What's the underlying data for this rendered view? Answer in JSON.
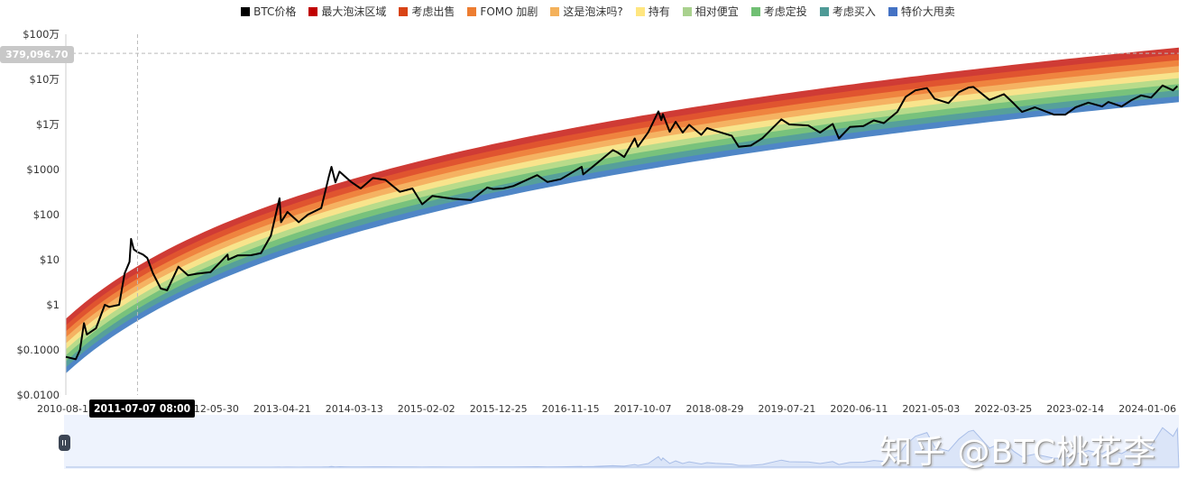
{
  "legend": [
    {
      "label": "BTC价格",
      "color": "#000000"
    },
    {
      "label": "最大泡沫区域",
      "color": "#c00000"
    },
    {
      "label": "考虑出售",
      "color": "#d84315"
    },
    {
      "label": "FOMO 加剧",
      "color": "#ed7d31"
    },
    {
      "label": "这是泡沫吗?",
      "color": "#f4b15b"
    },
    {
      "label": "持有",
      "color": "#ffe680"
    },
    {
      "label": "相对便宜",
      "color": "#a9d18e"
    },
    {
      "label": "考虑定投",
      "color": "#70bf73"
    },
    {
      "label": "考虑买入",
      "color": "#4e9a96"
    },
    {
      "label": "特价大甩卖",
      "color": "#4472c4"
    }
  ],
  "tooltip": {
    "x_label": "2011-07-07 08:00",
    "y_label": "379,096.70"
  },
  "watermark": "知乎 @BTC桃花李",
  "chart_data": {
    "type": "line",
    "y_scale": "log",
    "ylim": [
      0.01,
      1000000
    ],
    "y_ticks": [
      "$100万",
      "$10万",
      "$1万",
      "$1000",
      "$100",
      "$10",
      "$1",
      "$0.1000",
      "$0.0100"
    ],
    "x_ticks": [
      "2010-08-17",
      "2012-05-30",
      "2013-04-21",
      "2014-03-13",
      "2015-02-02",
      "2015-12-25",
      "2016-11-15",
      "2017-10-07",
      "2018-08-29",
      "2019-07-21",
      "2020-06-11",
      "2021-05-03",
      "2022-03-25",
      "2023-02-14",
      "2024-01-06"
    ],
    "xlim": [
      "2010-08-17",
      "2024-05-27"
    ],
    "grid": false,
    "legend_position": "top",
    "crosshair": {
      "date": "2011-07-07",
      "value": 379096.7
    },
    "rainbow": {
      "formula": "log10(price) = 2.67 * ln(days since 2009-01-03) - 18.56",
      "band_width_decades": 0.1333,
      "bands_bottom_to_top": [
        "特价大甩卖",
        "考虑买入",
        "考虑定投",
        "相对便宜",
        "持有",
        "这是泡沫吗?",
        "FOMO 加剧",
        "考虑出售",
        "最大泡沫区域"
      ],
      "band_colors_bottom_to_top": [
        "#4f86c6",
        "#56a09a",
        "#78c27c",
        "#b8db8a",
        "#f8e48c",
        "#f5b262",
        "#ef843f",
        "#e0542f",
        "#cf3b35"
      ]
    },
    "series": [
      {
        "name": "BTC价格",
        "color": "#000000",
        "points": [
          [
            "2010-08-17",
            0.07
          ],
          [
            "2010-10-01",
            0.062
          ],
          [
            "2010-10-20",
            0.1
          ],
          [
            "2010-11-07",
            0.39
          ],
          [
            "2010-11-20",
            0.22
          ],
          [
            "2010-12-31",
            0.3
          ],
          [
            "2011-02-09",
            1.0
          ],
          [
            "2011-03-01",
            0.9
          ],
          [
            "2011-04-15",
            1.0
          ],
          [
            "2011-05-10",
            5
          ],
          [
            "2011-06-01",
            9
          ],
          [
            "2011-06-08",
            29
          ],
          [
            "2011-06-20",
            17
          ],
          [
            "2011-07-07",
            14.8
          ],
          [
            "2011-08-01",
            13
          ],
          [
            "2011-08-20",
            11
          ],
          [
            "2011-09-15",
            5
          ],
          [
            "2011-10-20",
            2.3
          ],
          [
            "2011-11-18",
            2.1
          ],
          [
            "2012-01-08",
            7
          ],
          [
            "2012-02-20",
            4.5
          ],
          [
            "2012-04-01",
            4.9
          ],
          [
            "2012-06-01",
            5.3
          ],
          [
            "2012-08-17",
            13
          ],
          [
            "2012-08-20",
            10
          ],
          [
            "2012-10-01",
            12.4
          ],
          [
            "2012-12-01",
            12.6
          ],
          [
            "2013-01-15",
            14
          ],
          [
            "2013-03-01",
            34
          ],
          [
            "2013-04-09",
            230
          ],
          [
            "2013-04-16",
            68
          ],
          [
            "2013-05-15",
            115
          ],
          [
            "2013-07-05",
            68
          ],
          [
            "2013-08-15",
            100
          ],
          [
            "2013-10-15",
            140
          ],
          [
            "2013-11-18",
            700
          ],
          [
            "2013-11-30",
            1150
          ],
          [
            "2013-12-18",
            520
          ],
          [
            "2014-01-05",
            900
          ],
          [
            "2014-02-25",
            540
          ],
          [
            "2014-04-11",
            380
          ],
          [
            "2014-06-05",
            650
          ],
          [
            "2014-08-01",
            590
          ],
          [
            "2014-10-05",
            320
          ],
          [
            "2014-12-01",
            380
          ],
          [
            "2015-01-14",
            170
          ],
          [
            "2015-03-01",
            260
          ],
          [
            "2015-06-01",
            225
          ],
          [
            "2015-08-24",
            210
          ],
          [
            "2015-11-04",
            400
          ],
          [
            "2015-12-01",
            370
          ],
          [
            "2016-01-15",
            380
          ],
          [
            "2016-03-01",
            430
          ],
          [
            "2016-06-17",
            750
          ],
          [
            "2016-08-02",
            530
          ],
          [
            "2016-10-01",
            610
          ],
          [
            "2017-01-04",
            1150
          ],
          [
            "2017-01-11",
            780
          ],
          [
            "2017-03-01",
            1220
          ],
          [
            "2017-05-25",
            2700
          ],
          [
            "2017-06-15",
            2400
          ],
          [
            "2017-07-15",
            1900
          ],
          [
            "2017-09-01",
            4900
          ],
          [
            "2017-09-15",
            3200
          ],
          [
            "2017-11-01",
            6700
          ],
          [
            "2017-12-17",
            19500
          ],
          [
            "2017-12-30",
            12500
          ],
          [
            "2018-01-06",
            17000
          ],
          [
            "2018-02-06",
            6900
          ],
          [
            "2018-03-05",
            11500
          ],
          [
            "2018-04-06",
            6600
          ],
          [
            "2018-05-05",
            9800
          ],
          [
            "2018-06-29",
            5900
          ],
          [
            "2018-07-25",
            8300
          ],
          [
            "2018-09-01",
            7200
          ],
          [
            "2018-11-14",
            5600
          ],
          [
            "2018-12-15",
            3200
          ],
          [
            "2019-02-08",
            3400
          ],
          [
            "2019-04-02",
            5000
          ],
          [
            "2019-06-26",
            13000
          ],
          [
            "2019-08-01",
            10000
          ],
          [
            "2019-10-26",
            9500
          ],
          [
            "2019-12-18",
            6600
          ],
          [
            "2020-02-13",
            10300
          ],
          [
            "2020-03-12",
            4900
          ],
          [
            "2020-05-01",
            8800
          ],
          [
            "2020-07-01",
            9200
          ],
          [
            "2020-08-17",
            12300
          ],
          [
            "2020-10-01",
            10700
          ],
          [
            "2020-12-01",
            19000
          ],
          [
            "2021-01-08",
            41000
          ],
          [
            "2021-02-21",
            57000
          ],
          [
            "2021-04-14",
            64000
          ],
          [
            "2021-05-19",
            37000
          ],
          [
            "2021-07-20",
            29800
          ],
          [
            "2021-09-06",
            52000
          ],
          [
            "2021-10-20",
            66000
          ],
          [
            "2021-11-10",
            68000
          ],
          [
            "2022-01-22",
            35000
          ],
          [
            "2022-03-28",
            47000
          ],
          [
            "2022-05-12",
            29000
          ],
          [
            "2022-06-18",
            19000
          ],
          [
            "2022-08-15",
            24000
          ],
          [
            "2022-11-09",
            16500
          ],
          [
            "2022-12-31",
            16500
          ],
          [
            "2023-02-15",
            24000
          ],
          [
            "2023-04-14",
            30500
          ],
          [
            "2023-06-15",
            25000
          ],
          [
            "2023-07-13",
            31500
          ],
          [
            "2023-09-11",
            25000
          ],
          [
            "2023-10-25",
            34500
          ],
          [
            "2023-12-08",
            44000
          ],
          [
            "2024-01-23",
            39500
          ],
          [
            "2024-03-14",
            73000
          ],
          [
            "2024-05-01",
            57000
          ],
          [
            "2024-05-20",
            71000
          ]
        ]
      }
    ]
  }
}
